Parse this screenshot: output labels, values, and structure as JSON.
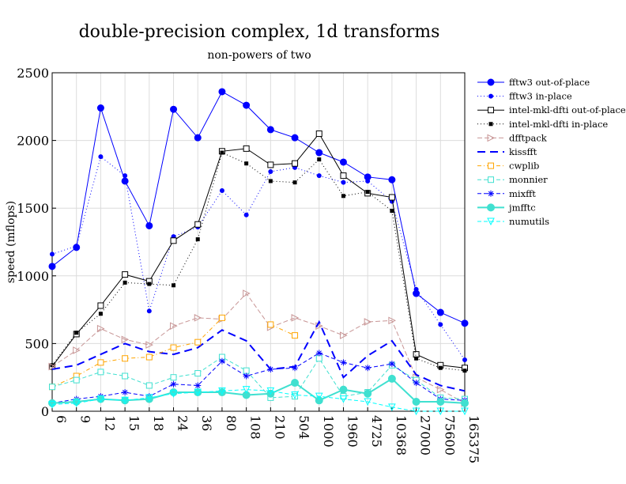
{
  "chart_data": {
    "type": "line",
    "title": "double-precision complex, 1d transforms",
    "subtitle": "non-powers of two",
    "ylabel": "speed (mflops)",
    "xlabel": "",
    "categories": [
      "6",
      "9",
      "12",
      "15",
      "18",
      "24",
      "36",
      "80",
      "108",
      "210",
      "504",
      "1000",
      "1960",
      "4725",
      "10368",
      "27000",
      "75600",
      "165375"
    ],
    "ylim": [
      0,
      2500
    ],
    "yticks": [
      0,
      500,
      1000,
      1500,
      2000,
      2500
    ],
    "grid": true,
    "legend_position": "right",
    "series": [
      {
        "name": "fftw3 out-of-place",
        "color": "#0000ff",
        "dash": "",
        "marker": "circle-filled",
        "msize": 4,
        "width": 1,
        "values": [
          1070,
          1210,
          2240,
          1700,
          1370,
          2230,
          2020,
          2360,
          2260,
          2080,
          2020,
          1910,
          1840,
          1730,
          1710,
          870,
          730,
          650
        ]
      },
      {
        "name": "fftw3 in-place",
        "color": "#0000ff",
        "dash": "1,3",
        "marker": "circle-filled",
        "msize": 2.5,
        "width": 1,
        "values": [
          1160,
          1220,
          1880,
          1740,
          740,
          1290,
          1360,
          1630,
          1450,
          1770,
          1800,
          1740,
          1690,
          1700,
          1550,
          900,
          640,
          380
        ]
      },
      {
        "name": "intel-mkl-dfti out-of-place",
        "color": "#000000",
        "dash": "",
        "marker": "square-open",
        "msize": 3.5,
        "width": 1,
        "values": [
          330,
          570,
          780,
          1010,
          960,
          1260,
          1380,
          1920,
          1940,
          1820,
          1830,
          2050,
          1740,
          1610,
          1580,
          420,
          340,
          320
        ]
      },
      {
        "name": "intel-mkl-dfti in-place",
        "color": "#000000",
        "dash": "1,3",
        "marker": "square-filled",
        "msize": 2,
        "width": 1,
        "values": [
          340,
          580,
          720,
          950,
          940,
          930,
          1270,
          1910,
          1830,
          1700,
          1690,
          1860,
          1590,
          1620,
          1480,
          390,
          320,
          300
        ]
      },
      {
        "name": "dfftpack",
        "color": "#c89696",
        "dash": "6,3",
        "marker": "triangle-right-open",
        "msize": 4,
        "width": 1,
        "values": [
          330,
          450,
          610,
          530,
          490,
          630,
          690,
          680,
          870,
          620,
          690,
          630,
          560,
          660,
          670,
          250,
          160,
          60
        ]
      },
      {
        "name": "kissfft",
        "color": "#0000ff",
        "dash": "10,6",
        "marker": "none",
        "msize": 0,
        "width": 2,
        "values": [
          310,
          340,
          420,
          500,
          440,
          420,
          470,
          600,
          520,
          310,
          330,
          660,
          250,
          410,
          520,
          270,
          190,
          150
        ]
      },
      {
        "name": "cwplib",
        "color": "#ffa500",
        "dash": "5,3,1,3",
        "marker": "square-open",
        "msize": 3.5,
        "width": 1,
        "values": [
          180,
          260,
          360,
          390,
          400,
          470,
          510,
          690,
          null,
          640,
          560,
          null,
          null,
          null,
          null,
          null,
          null,
          null
        ]
      },
      {
        "name": "monnier",
        "color": "#40e0d0",
        "dash": "5,3",
        "marker": "square-open",
        "msize": 3.5,
        "width": 1,
        "values": [
          180,
          230,
          290,
          260,
          190,
          250,
          280,
          400,
          300,
          100,
          110,
          390,
          110,
          140,
          340,
          230,
          100,
          90
        ]
      },
      {
        "name": "mixfft",
        "color": "#0000ff",
        "dash": "5,3",
        "marker": "asterisk",
        "msize": 4,
        "width": 1,
        "values": [
          60,
          90,
          110,
          140,
          110,
          200,
          190,
          370,
          260,
          310,
          320,
          430,
          360,
          320,
          350,
          210,
          90,
          80
        ]
      },
      {
        "name": "jmfftc",
        "color": "#40e0d0",
        "dash": "",
        "marker": "circle-filled",
        "msize": 4.5,
        "width": 2,
        "values": [
          60,
          70,
          90,
          80,
          90,
          140,
          140,
          140,
          120,
          130,
          210,
          80,
          160,
          130,
          240,
          70,
          70,
          60
        ]
      },
      {
        "name": "numutils",
        "color": "#00ffff",
        "dash": "5,3",
        "marker": "triangle-down-open",
        "msize": 4,
        "width": 1,
        "values": [
          50,
          60,
          90,
          80,
          100,
          130,
          140,
          150,
          160,
          150,
          120,
          110,
          90,
          70,
          30,
          0,
          0,
          0
        ]
      }
    ]
  }
}
